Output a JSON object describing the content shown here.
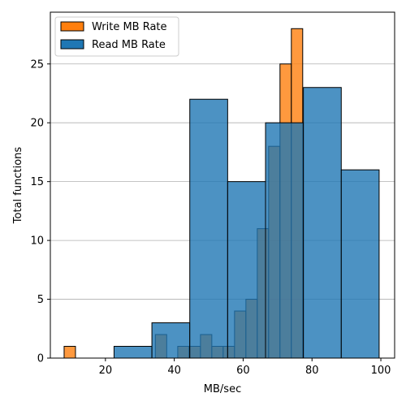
{
  "chart_data": {
    "type": "bar",
    "xlabel": "MB/sec",
    "ylabel": "Total functions",
    "xlim": [
      4,
      104
    ],
    "ylim": [
      0,
      29.4
    ],
    "xticks": [
      20,
      40,
      60,
      80,
      100
    ],
    "yticks": [
      0,
      5,
      10,
      15,
      20,
      25
    ],
    "grid": "y",
    "legend_position": "top-left",
    "series": [
      {
        "name": "Write MB Rate",
        "color": "#ff7f0e",
        "bins": [
          {
            "x0": 8.0,
            "x1": 11.3,
            "value": 1
          },
          {
            "x0": 34.5,
            "x1": 37.8,
            "value": 2
          },
          {
            "x0": 41.0,
            "x1": 44.3,
            "value": 1
          },
          {
            "x0": 44.3,
            "x1": 47.6,
            "value": 1
          },
          {
            "x0": 47.6,
            "x1": 50.9,
            "value": 2
          },
          {
            "x0": 50.9,
            "x1": 54.2,
            "value": 1
          },
          {
            "x0": 54.2,
            "x1": 57.5,
            "value": 1
          },
          {
            "x0": 57.5,
            "x1": 60.8,
            "value": 4
          },
          {
            "x0": 60.8,
            "x1": 64.1,
            "value": 5
          },
          {
            "x0": 64.1,
            "x1": 67.4,
            "value": 11
          },
          {
            "x0": 67.4,
            "x1": 70.7,
            "value": 18
          },
          {
            "x0": 70.7,
            "x1": 74.0,
            "value": 25
          },
          {
            "x0": 74.0,
            "x1": 77.3,
            "value": 28
          }
        ]
      },
      {
        "name": "Read MB Rate",
        "color": "#1f77b4",
        "bins": [
          {
            "x0": 22.5,
            "x1": 33.5,
            "value": 1
          },
          {
            "x0": 33.5,
            "x1": 44.5,
            "value": 3
          },
          {
            "x0": 44.5,
            "x1": 55.5,
            "value": 22
          },
          {
            "x0": 55.5,
            "x1": 66.5,
            "value": 15
          },
          {
            "x0": 66.5,
            "x1": 77.5,
            "value": 20
          },
          {
            "x0": 77.5,
            "x1": 88.5,
            "value": 23
          },
          {
            "x0": 88.5,
            "x1": 99.5,
            "value": 16
          }
        ]
      }
    ]
  }
}
